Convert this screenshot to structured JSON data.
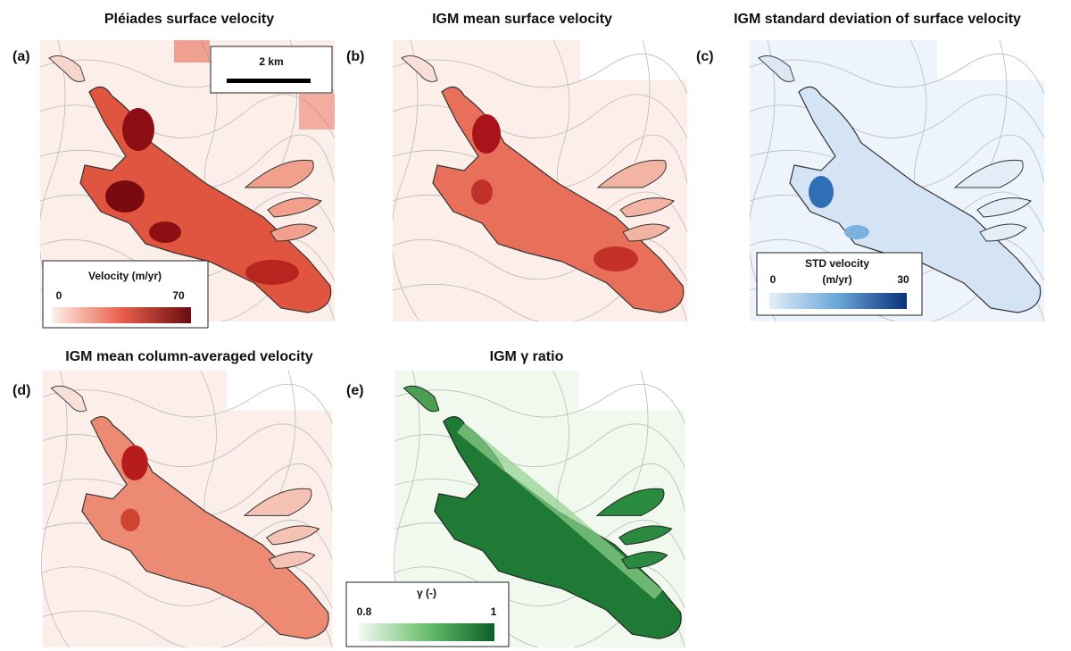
{
  "panels": [
    {
      "letter": "(a)",
      "title": "Pléiades surface velocity"
    },
    {
      "letter": "(b)",
      "title": "IGM mean surface velocity"
    },
    {
      "letter": "(c)",
      "title": "IGM standard deviation of surface velocity"
    },
    {
      "letter": "(d)",
      "title": "IGM mean column-averaged velocity"
    },
    {
      "letter": "(e)",
      "title": "IGM γ ratio"
    }
  ],
  "scale_bar": {
    "label": "2 km"
  },
  "colorbars": [
    {
      "label": "Velocity (m/yr)",
      "min": 0,
      "max": 70
    },
    {
      "label": [
        "STD velocity",
        "(m/yr)"
      ],
      "min": 0,
      "max": 30
    },
    {
      "label": "γ (-)",
      "min": 0.8,
      "max": 1
    }
  ]
}
